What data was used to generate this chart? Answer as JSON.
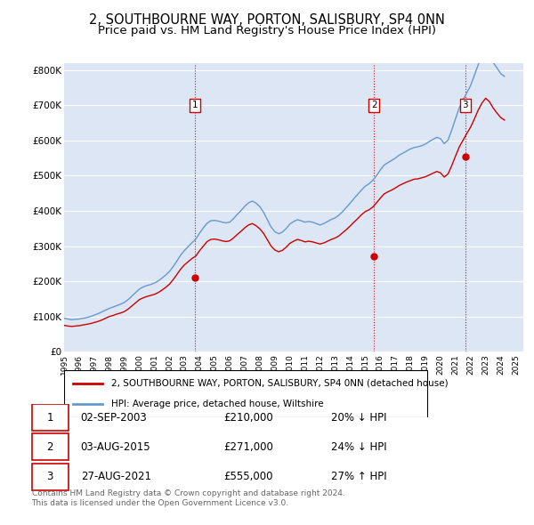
{
  "title": "2, SOUTHBOURNE WAY, PORTON, SALISBURY, SP4 0NN",
  "subtitle": "Price paid vs. HM Land Registry's House Price Index (HPI)",
  "title_fontsize": 10.5,
  "subtitle_fontsize": 9.5,
  "background_color": "#ffffff",
  "plot_bg_color": "#dce6f5",
  "grid_color": "#ffffff",
  "line_color_property": "#cc0000",
  "line_color_hpi": "#6699cc",
  "sale_marker_color": "#cc0000",
  "sale_vline_color": "#cc0000",
  "ylim": [
    0,
    820000
  ],
  "yticks": [
    0,
    100000,
    200000,
    300000,
    400000,
    500000,
    600000,
    700000,
    800000
  ],
  "ytick_labels": [
    "£0",
    "£100K",
    "£200K",
    "£300K",
    "£400K",
    "£500K",
    "£600K",
    "£700K",
    "£800K"
  ],
  "sales": [
    {
      "date_num": 2003.67,
      "price": 210000,
      "label": "1"
    },
    {
      "date_num": 2015.58,
      "price": 271000,
      "label": "2"
    },
    {
      "date_num": 2021.65,
      "price": 555000,
      "label": "3"
    }
  ],
  "legend_property": "2, SOUTHBOURNE WAY, PORTON, SALISBURY, SP4 0NN (detached house)",
  "legend_hpi": "HPI: Average price, detached house, Wiltshire",
  "table_rows": [
    {
      "num": "1",
      "date": "02-SEP-2003",
      "price": "£210,000",
      "hpi": "20% ↓ HPI"
    },
    {
      "num": "2",
      "date": "03-AUG-2015",
      "price": "£271,000",
      "hpi": "24% ↓ HPI"
    },
    {
      "num": "3",
      "date": "27-AUG-2021",
      "price": "£555,000",
      "hpi": "27% ↑ HPI"
    }
  ],
  "footer": [
    "Contains HM Land Registry data © Crown copyright and database right 2024.",
    "This data is licensed under the Open Government Licence v3.0."
  ],
  "hpi_data": {
    "years": [
      1995.0,
      1995.25,
      1995.5,
      1995.75,
      1996.0,
      1996.25,
      1996.5,
      1996.75,
      1997.0,
      1997.25,
      1997.5,
      1997.75,
      1998.0,
      1998.25,
      1998.5,
      1998.75,
      1999.0,
      1999.25,
      1999.5,
      1999.75,
      2000.0,
      2000.25,
      2000.5,
      2000.75,
      2001.0,
      2001.25,
      2001.5,
      2001.75,
      2002.0,
      2002.25,
      2002.5,
      2002.75,
      2003.0,
      2003.25,
      2003.5,
      2003.75,
      2004.0,
      2004.25,
      2004.5,
      2004.75,
      2005.0,
      2005.25,
      2005.5,
      2005.75,
      2006.0,
      2006.25,
      2006.5,
      2006.75,
      2007.0,
      2007.25,
      2007.5,
      2007.75,
      2008.0,
      2008.25,
      2008.5,
      2008.75,
      2009.0,
      2009.25,
      2009.5,
      2009.75,
      2010.0,
      2010.25,
      2010.5,
      2010.75,
      2011.0,
      2011.25,
      2011.5,
      2011.75,
      2012.0,
      2012.25,
      2012.5,
      2012.75,
      2013.0,
      2013.25,
      2013.5,
      2013.75,
      2014.0,
      2014.25,
      2014.5,
      2014.75,
      2015.0,
      2015.25,
      2015.5,
      2015.75,
      2016.0,
      2016.25,
      2016.5,
      2016.75,
      2017.0,
      2017.25,
      2017.5,
      2017.75,
      2018.0,
      2018.25,
      2018.5,
      2018.75,
      2019.0,
      2019.25,
      2019.5,
      2019.75,
      2020.0,
      2020.25,
      2020.5,
      2020.75,
      2021.0,
      2021.25,
      2021.5,
      2021.75,
      2022.0,
      2022.25,
      2022.5,
      2022.75,
      2023.0,
      2023.25,
      2023.5,
      2023.75,
      2024.0,
      2024.25
    ],
    "values": [
      95000,
      93000,
      91000,
      92000,
      93000,
      95000,
      97000,
      100000,
      104000,
      108000,
      113000,
      118000,
      123000,
      127000,
      131000,
      135000,
      140000,
      148000,
      158000,
      168000,
      178000,
      184000,
      188000,
      191000,
      195000,
      201000,
      209000,
      218000,
      228000,
      242000,
      258000,
      275000,
      288000,
      299000,
      310000,
      320000,
      337000,
      352000,
      365000,
      372000,
      373000,
      371000,
      368000,
      366000,
      368000,
      378000,
      390000,
      401000,
      413000,
      423000,
      428000,
      422000,
      412000,
      396000,
      375000,
      354000,
      341000,
      335000,
      340000,
      350000,
      363000,
      370000,
      375000,
      372000,
      368000,
      370000,
      368000,
      364000,
      360000,
      364000,
      370000,
      376000,
      380000,
      388000,
      398000,
      410000,
      422000,
      435000,
      447000,
      459000,
      470000,
      477000,
      487000,
      500000,
      516000,
      530000,
      537000,
      543000,
      550000,
      558000,
      564000,
      570000,
      576000,
      580000,
      582000,
      585000,
      590000,
      597000,
      603000,
      609000,
      605000,
      591000,
      601000,
      630000,
      662000,
      693000,
      715000,
      736000,
      756000,
      785000,
      815000,
      838000,
      855000,
      843000,
      822000,
      806000,
      790000,
      782000
    ]
  },
  "property_data": {
    "years": [
      1995.0,
      1995.25,
      1995.5,
      1995.75,
      1996.0,
      1996.25,
      1996.5,
      1996.75,
      1997.0,
      1997.25,
      1997.5,
      1997.75,
      1998.0,
      1998.25,
      1998.5,
      1998.75,
      1999.0,
      1999.25,
      1999.5,
      1999.75,
      2000.0,
      2000.25,
      2000.5,
      2000.75,
      2001.0,
      2001.25,
      2001.5,
      2001.75,
      2002.0,
      2002.25,
      2002.5,
      2002.75,
      2003.0,
      2003.25,
      2003.5,
      2003.75,
      2004.0,
      2004.25,
      2004.5,
      2004.75,
      2005.0,
      2005.25,
      2005.5,
      2005.75,
      2006.0,
      2006.25,
      2006.5,
      2006.75,
      2007.0,
      2007.25,
      2007.5,
      2007.75,
      2008.0,
      2008.25,
      2008.5,
      2008.75,
      2009.0,
      2009.25,
      2009.5,
      2009.75,
      2010.0,
      2010.25,
      2010.5,
      2010.75,
      2011.0,
      2011.25,
      2011.5,
      2011.75,
      2012.0,
      2012.25,
      2012.5,
      2012.75,
      2013.0,
      2013.25,
      2013.5,
      2013.75,
      2014.0,
      2014.25,
      2014.5,
      2014.75,
      2015.0,
      2015.25,
      2015.5,
      2015.75,
      2016.0,
      2016.25,
      2016.5,
      2016.75,
      2017.0,
      2017.25,
      2017.5,
      2017.75,
      2018.0,
      2018.25,
      2018.5,
      2018.75,
      2019.0,
      2019.25,
      2019.5,
      2019.75,
      2020.0,
      2020.25,
      2020.5,
      2020.75,
      2021.0,
      2021.25,
      2021.5,
      2021.75,
      2022.0,
      2022.25,
      2022.5,
      2022.75,
      2023.0,
      2023.25,
      2023.5,
      2023.75,
      2024.0,
      2024.25
    ],
    "values": [
      75000,
      73000,
      72000,
      73000,
      74000,
      76000,
      78000,
      80000,
      83000,
      86000,
      90000,
      95000,
      100000,
      103000,
      107000,
      110000,
      114000,
      121000,
      130000,
      139000,
      148000,
      153000,
      157000,
      160000,
      163000,
      168000,
      175000,
      183000,
      192000,
      205000,
      220000,
      235000,
      247000,
      256000,
      265000,
      272000,
      287000,
      300000,
      313000,
      319000,
      320000,
      318000,
      315000,
      313000,
      315000,
      323000,
      333000,
      342000,
      352000,
      360000,
      364000,
      358000,
      349000,
      336000,
      318000,
      300000,
      289000,
      284000,
      288000,
      297000,
      308000,
      314000,
      319000,
      316000,
      312000,
      314000,
      312000,
      309000,
      306000,
      309000,
      314000,
      319000,
      323000,
      329000,
      338000,
      347000,
      357000,
      368000,
      378000,
      389000,
      398000,
      403000,
      411000,
      423000,
      436000,
      448000,
      454000,
      459000,
      465000,
      472000,
      477000,
      482000,
      486000,
      490000,
      491000,
      494000,
      497000,
      502000,
      507000,
      512000,
      508000,
      496000,
      505000,
      529000,
      556000,
      582000,
      601000,
      620000,
      638000,
      661000,
      686000,
      706000,
      720000,
      710000,
      692000,
      678000,
      665000,
      658000
    ]
  }
}
